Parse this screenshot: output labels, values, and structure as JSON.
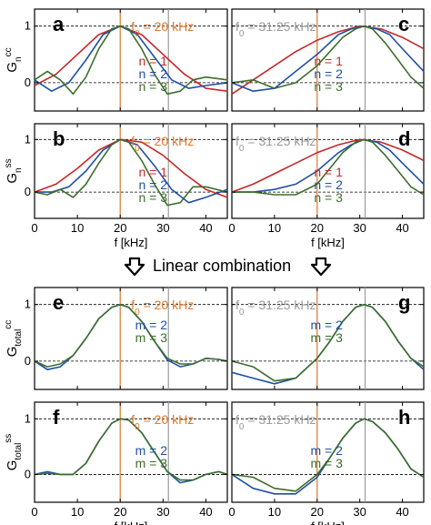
{
  "divider_text": "Linear combination",
  "xtick_labels": [
    "0",
    "10",
    "20",
    "30",
    "40"
  ],
  "ytick_labels": [
    "0",
    "1"
  ],
  "xlabel": "f [kHz]",
  "colors": {
    "n1": "#c62828",
    "n2": "#1f4fa3",
    "n3": "#3c6e2b",
    "f0_line": "#d9772e",
    "f0_alt_line": "#9a9a9a",
    "f0_text": "#e0792a",
    "f0_alt_text": "#9a9a9a"
  },
  "chart_data": [
    {
      "panel": "a",
      "type": "line",
      "ylabel": "G",
      "ylabel_sub": "n",
      "ylabel_sup": "cc",
      "annotation": "f₀ = 20 kHz",
      "annotation_parts": {
        "base": "f",
        "sub": "0",
        "rest": " = 20 kHz"
      },
      "f0_khz": 20,
      "secondary_marker_khz": 31.25,
      "legend": [
        "n = 1",
        "n = 2",
        "n = 3"
      ],
      "xlim": [
        0,
        45
      ],
      "ylim": [
        -0.5,
        1.3
      ],
      "series": [
        {
          "name": "n = 1",
          "color": "n1",
          "x": [
            0,
            5,
            10,
            15,
            20,
            25,
            30,
            35,
            40,
            45
          ],
          "y": [
            -0.05,
            0.15,
            0.5,
            0.85,
            1.0,
            0.85,
            0.5,
            0.15,
            -0.1,
            -0.15
          ]
        },
        {
          "name": "n = 2",
          "color": "n2",
          "x": [
            0,
            4,
            8,
            12,
            16,
            20,
            24,
            28,
            32,
            36,
            40,
            45
          ],
          "y": [
            0.05,
            -0.15,
            0.0,
            0.4,
            0.85,
            1.0,
            0.85,
            0.45,
            0.05,
            -0.1,
            -0.05,
            0.0
          ]
        },
        {
          "name": "n = 3",
          "color": "n3",
          "x": [
            0,
            3,
            6,
            9,
            12,
            15,
            18,
            20,
            22,
            25,
            28,
            31,
            34,
            37,
            40,
            45
          ],
          "y": [
            0.05,
            0.2,
            0.05,
            -0.2,
            0.1,
            0.6,
            0.95,
            1.0,
            0.95,
            0.6,
            0.15,
            -0.2,
            -0.15,
            0.05,
            0.1,
            0.05
          ]
        }
      ]
    },
    {
      "panel": "b",
      "type": "line",
      "ylabel": "G",
      "ylabel_sub": "n",
      "ylabel_sup": "ss",
      "annotation": "f₀ = 20 kHz",
      "annotation_parts": {
        "base": "f",
        "sub": "0",
        "rest": " = 20 kHz"
      },
      "f0_khz": 20,
      "secondary_marker_khz": 31.25,
      "legend": [
        "n = 1",
        "n = 2",
        "n = 3"
      ],
      "xlim": [
        0,
        45
      ],
      "ylim": [
        -0.5,
        1.3
      ],
      "series": [
        {
          "name": "n = 1",
          "color": "n1",
          "x": [
            0,
            5,
            10,
            15,
            20,
            25,
            30,
            35,
            40,
            45
          ],
          "y": [
            0.0,
            0.15,
            0.45,
            0.8,
            1.0,
            0.95,
            0.7,
            0.35,
            0.05,
            -0.1
          ]
        },
        {
          "name": "n = 2",
          "color": "n2",
          "x": [
            0,
            4,
            8,
            12,
            16,
            20,
            24,
            28,
            32,
            36,
            40,
            45
          ],
          "y": [
            0.0,
            0.0,
            0.1,
            0.4,
            0.8,
            1.0,
            0.9,
            0.5,
            0.05,
            -0.2,
            -0.1,
            0.05
          ]
        },
        {
          "name": "n = 3",
          "color": "n3",
          "x": [
            0,
            3,
            6,
            9,
            12,
            15,
            18,
            20,
            22,
            25,
            28,
            31,
            34,
            37,
            40,
            45
          ],
          "y": [
            0.0,
            -0.05,
            0.05,
            -0.1,
            0.15,
            0.55,
            0.9,
            1.0,
            0.95,
            0.6,
            0.15,
            -0.25,
            -0.2,
            0.1,
            0.1,
            0.0
          ]
        }
      ]
    },
    {
      "panel": "c",
      "type": "line",
      "ylabel": "",
      "annotation": "f₀ = 31.25 kHz",
      "annotation_parts": {
        "base": "f",
        "sub": "0",
        "rest": " = 31.25 kHz"
      },
      "f0_khz": 31.25,
      "secondary_marker_khz": 20,
      "legend": [
        "n = 1",
        "n = 2",
        "n = 3"
      ],
      "xlim": [
        0,
        45
      ],
      "ylim": [
        -0.5,
        1.3
      ],
      "series": [
        {
          "name": "n = 1",
          "color": "n1",
          "x": [
            0,
            5,
            10,
            15,
            20,
            25,
            30,
            35,
            40,
            45
          ],
          "y": [
            -0.2,
            0.05,
            0.3,
            0.55,
            0.75,
            0.9,
            1.0,
            0.95,
            0.8,
            0.6
          ]
        },
        {
          "name": "n = 2",
          "color": "n2",
          "x": [
            0,
            5,
            10,
            15,
            20,
            25,
            28,
            31,
            34,
            37,
            40,
            45
          ],
          "y": [
            0.0,
            -0.15,
            -0.1,
            0.2,
            0.5,
            0.85,
            0.95,
            1.0,
            0.95,
            0.85,
            0.6,
            0.2
          ]
        },
        {
          "name": "n = 3",
          "color": "n3",
          "x": [
            0,
            5,
            10,
            15,
            20,
            23,
            26,
            29,
            31,
            33,
            36,
            39,
            42,
            45
          ],
          "y": [
            0.0,
            0.05,
            -0.1,
            0.0,
            0.3,
            0.55,
            0.8,
            0.95,
            1.0,
            0.95,
            0.7,
            0.4,
            0.1,
            -0.1
          ]
        }
      ]
    },
    {
      "panel": "d",
      "type": "line",
      "ylabel": "",
      "annotation": "f₀ = 31.25 kHz",
      "annotation_parts": {
        "base": "f",
        "sub": "0",
        "rest": " = 31.25 kHz"
      },
      "f0_khz": 31.25,
      "secondary_marker_khz": 20,
      "legend": [
        "n = 1",
        "n = 2",
        "n = 3"
      ],
      "xlim": [
        0,
        45
      ],
      "ylim": [
        -0.5,
        1.3
      ],
      "series": [
        {
          "name": "n = 1",
          "color": "n1",
          "x": [
            0,
            5,
            10,
            15,
            20,
            25,
            30,
            35,
            40,
            45
          ],
          "y": [
            0.0,
            0.15,
            0.35,
            0.55,
            0.75,
            0.9,
            1.0,
            0.95,
            0.8,
            0.6
          ]
        },
        {
          "name": "n = 2",
          "color": "n2",
          "x": [
            0,
            5,
            10,
            15,
            20,
            25,
            28,
            31,
            34,
            37,
            40,
            45
          ],
          "y": [
            0.0,
            0.0,
            0.05,
            0.15,
            0.4,
            0.75,
            0.9,
            1.0,
            0.95,
            0.8,
            0.55,
            0.15
          ]
        },
        {
          "name": "n = 3",
          "color": "n3",
          "x": [
            0,
            5,
            10,
            15,
            20,
            23,
            26,
            29,
            31,
            33,
            36,
            39,
            42,
            45
          ],
          "y": [
            0.0,
            0.0,
            -0.05,
            -0.05,
            0.15,
            0.45,
            0.75,
            0.95,
            1.0,
            0.95,
            0.7,
            0.4,
            0.1,
            -0.05
          ]
        }
      ]
    },
    {
      "panel": "e",
      "type": "line",
      "ylabel": "G",
      "ylabel_sub": "total",
      "ylabel_sup": "cc",
      "annotation": "f₀ = 20 kHz",
      "annotation_parts": {
        "base": "f",
        "sub": "0",
        "rest": " = 20 kHz"
      },
      "f0_khz": 20,
      "secondary_marker_khz": 31.25,
      "legend": [
        "m = 2",
        "m = 3"
      ],
      "xlim": [
        0,
        45
      ],
      "ylim": [
        -0.5,
        1.3
      ],
      "series": [
        {
          "name": "m = 2",
          "color": "n2",
          "x": [
            0,
            3,
            6,
            9,
            12,
            15,
            18,
            20,
            22,
            25,
            28,
            31,
            34,
            37,
            40,
            43,
            45
          ],
          "y": [
            0.0,
            -0.15,
            -0.1,
            0.1,
            0.4,
            0.75,
            0.95,
            1.0,
            0.95,
            0.7,
            0.35,
            0.02,
            -0.1,
            -0.05,
            0.05,
            0.03,
            0.0
          ]
        },
        {
          "name": "m = 3",
          "color": "n3",
          "x": [
            0,
            3,
            6,
            9,
            12,
            15,
            18,
            20,
            22,
            25,
            28,
            31,
            34,
            37,
            40,
            43,
            45
          ],
          "y": [
            0.0,
            -0.1,
            -0.05,
            0.1,
            0.4,
            0.75,
            0.95,
            1.0,
            0.95,
            0.7,
            0.35,
            0.05,
            -0.05,
            -0.05,
            0.05,
            0.03,
            0.0
          ]
        }
      ]
    },
    {
      "panel": "f",
      "type": "line",
      "ylabel": "G",
      "ylabel_sub": "total",
      "ylabel_sup": "ss",
      "annotation": "f₀ = 20 kHz",
      "annotation_parts": {
        "base": "f",
        "sub": "0",
        "rest": " = 20 kHz"
      },
      "f0_khz": 20,
      "secondary_marker_khz": 31.25,
      "legend": [
        "m = 2",
        "m = 3"
      ],
      "xlim": [
        0,
        45
      ],
      "ylim": [
        -0.5,
        1.3
      ],
      "series": [
        {
          "name": "m = 2",
          "color": "n2",
          "x": [
            0,
            3,
            6,
            9,
            12,
            15,
            18,
            20,
            22,
            25,
            28,
            31,
            34,
            37,
            40,
            43,
            45
          ],
          "y": [
            0.0,
            0.05,
            0.0,
            0.0,
            0.2,
            0.6,
            0.92,
            1.0,
            0.98,
            0.75,
            0.4,
            0.05,
            -0.15,
            -0.1,
            0.0,
            0.05,
            0.0
          ]
        },
        {
          "name": "m = 3",
          "color": "n3",
          "x": [
            0,
            3,
            6,
            9,
            12,
            15,
            18,
            20,
            22,
            25,
            28,
            31,
            34,
            37,
            40,
            43,
            45
          ],
          "y": [
            0.0,
            0.02,
            0.0,
            0.0,
            0.2,
            0.6,
            0.92,
            1.0,
            0.98,
            0.75,
            0.4,
            0.05,
            -0.1,
            -0.1,
            0.0,
            0.05,
            0.0
          ]
        }
      ]
    },
    {
      "panel": "g",
      "type": "line",
      "ylabel": "",
      "annotation": "f₀ = 31.25 kHz",
      "annotation_parts": {
        "base": "f",
        "sub": "0",
        "rest": " = 31.25 kHz"
      },
      "f0_khz": 31.25,
      "secondary_marker_khz": 20,
      "legend": [
        "m = 2",
        "m = 3"
      ],
      "xlim": [
        0,
        45
      ],
      "ylim": [
        -0.5,
        1.3
      ],
      "series": [
        {
          "name": "m = 2",
          "color": "n2",
          "x": [
            0,
            5,
            10,
            15,
            20,
            23,
            26,
            29,
            31,
            33,
            36,
            39,
            42,
            45
          ],
          "y": [
            -0.2,
            -0.3,
            -0.4,
            -0.3,
            0.05,
            0.35,
            0.7,
            0.95,
            1.0,
            0.95,
            0.7,
            0.35,
            0.05,
            -0.15
          ]
        },
        {
          "name": "m = 3",
          "color": "n3",
          "x": [
            0,
            5,
            10,
            15,
            20,
            23,
            26,
            29,
            31,
            33,
            36,
            39,
            42,
            45
          ],
          "y": [
            0.0,
            -0.1,
            -0.35,
            -0.3,
            0.05,
            0.35,
            0.7,
            0.95,
            1.0,
            0.95,
            0.7,
            0.35,
            0.05,
            -0.1
          ]
        }
      ]
    },
    {
      "panel": "h",
      "type": "line",
      "ylabel": "",
      "annotation": "f₀ = 31.25 kHz",
      "annotation_parts": {
        "base": "f",
        "sub": "0",
        "rest": " = 31.25 kHz"
      },
      "f0_khz": 31.25,
      "secondary_marker_khz": 20,
      "legend": [
        "m = 2",
        "m = 3"
      ],
      "xlim": [
        0,
        45
      ],
      "ylim": [
        -0.5,
        1.3
      ],
      "series": [
        {
          "name": "m = 2",
          "color": "n2",
          "x": [
            0,
            5,
            10,
            15,
            20,
            23,
            26,
            29,
            31,
            33,
            36,
            39,
            42,
            45
          ],
          "y": [
            0.0,
            -0.25,
            -0.35,
            -0.35,
            -0.05,
            0.3,
            0.65,
            0.92,
            1.0,
            0.95,
            0.75,
            0.45,
            0.1,
            -0.05
          ]
        },
        {
          "name": "m = 3",
          "color": "n3",
          "x": [
            0,
            5,
            10,
            15,
            20,
            23,
            26,
            29,
            31,
            33,
            36,
            39,
            42,
            45
          ],
          "y": [
            0.0,
            -0.05,
            -0.25,
            -0.3,
            0.0,
            0.3,
            0.65,
            0.92,
            1.0,
            0.95,
            0.75,
            0.45,
            0.1,
            -0.05
          ]
        }
      ]
    }
  ]
}
